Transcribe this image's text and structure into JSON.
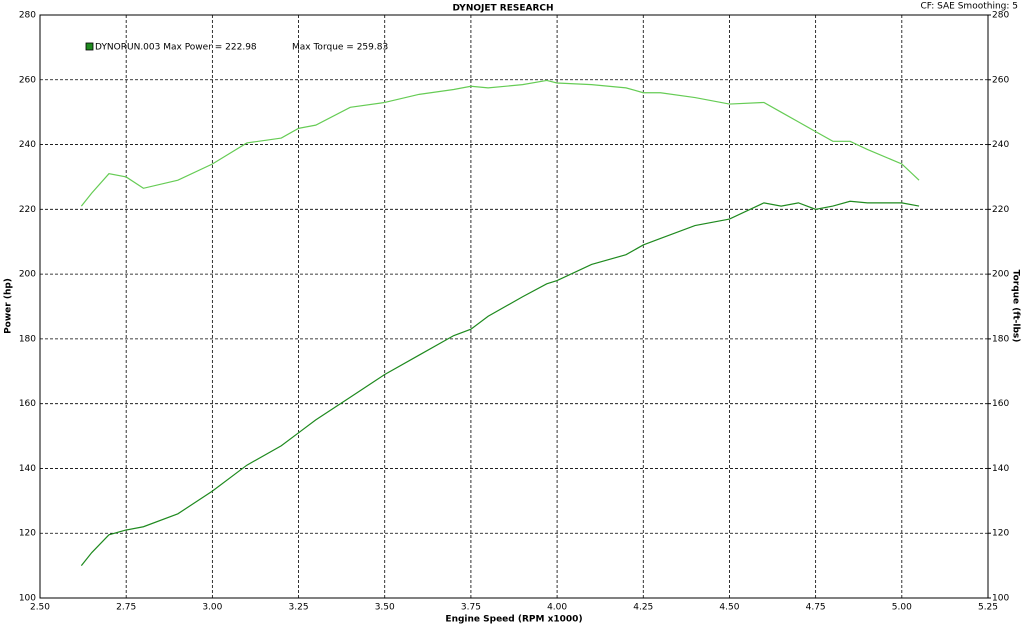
{
  "chart_data": {
    "type": "line",
    "title": "DYNOJET RESEARCH",
    "subtitle": "CF: SAE  Smoothing: 5",
    "annotations": [
      "DYNORUN.003 Max Power = 222.98",
      "Max Torque = 259.83"
    ],
    "x_label": "Engine Speed (RPM x1000)",
    "y_label": "Power (hp)",
    "y2_label": "Torque (ft-lbs)",
    "x": [
      2.62,
      2.65,
      2.7,
      2.75,
      2.8,
      2.9,
      3.0,
      3.1,
      3.2,
      3.25,
      3.3,
      3.4,
      3.5,
      3.6,
      3.7,
      3.75,
      3.8,
      3.9,
      3.97,
      4.0,
      4.1,
      4.2,
      4.25,
      4.3,
      4.4,
      4.5,
      4.6,
      4.65,
      4.7,
      4.75,
      4.8,
      4.85,
      4.9,
      5.0,
      5.05
    ],
    "series": [
      {
        "color": "#1f8a1f",
        "values": [
          110,
          114,
          119.5,
          121,
          122,
          126,
          133,
          141,
          147,
          151,
          155,
          162,
          169,
          175,
          181,
          183,
          187,
          193,
          197,
          198,
          203,
          206,
          209,
          211,
          215,
          217,
          222,
          221,
          222,
          220,
          221,
          222.5,
          222,
          222,
          221
        ]
      },
      {
        "color": "#66cc55",
        "axis": "y2",
        "values": [
          221,
          225,
          231,
          230,
          226.5,
          229,
          234,
          240.5,
          242,
          245,
          246,
          251.5,
          253,
          255.5,
          257,
          258,
          257.5,
          258.5,
          259.8,
          259,
          258.5,
          257.5,
          256,
          256,
          254.5,
          252.5,
          253,
          250,
          247,
          244,
          241,
          241,
          238.5,
          234,
          229
        ]
      }
    ],
    "xlim": [
      2.5,
      5.25
    ],
    "xticks": [
      {
        "value": 2.5,
        "label": "2.50"
      },
      {
        "value": 2.75,
        "label": "2.75"
      },
      {
        "value": 3,
        "label": "3.00"
      },
      {
        "value": 3.25,
        "label": "3.25"
      },
      {
        "value": 3.5,
        "label": "3.50"
      },
      {
        "value": 3.75,
        "label": "3.75"
      },
      {
        "value": 4,
        "label": "4.00"
      },
      {
        "value": 4.25,
        "label": "4.25"
      },
      {
        "value": 4.5,
        "label": "4.50"
      },
      {
        "value": 4.75,
        "label": "4.75"
      },
      {
        "value": 5,
        "label": "5.00"
      },
      {
        "value": 5.25,
        "label": "5.25"
      }
    ],
    "ylim": [
      100,
      280
    ],
    "yticks": [
      100,
      120,
      140,
      160,
      180,
      200,
      220,
      240,
      260,
      280
    ],
    "y2lim": [
      100,
      280
    ],
    "y2ticks": [
      100,
      120,
      140,
      160,
      180,
      200,
      220,
      240,
      260,
      280
    ],
    "grid": true
  }
}
